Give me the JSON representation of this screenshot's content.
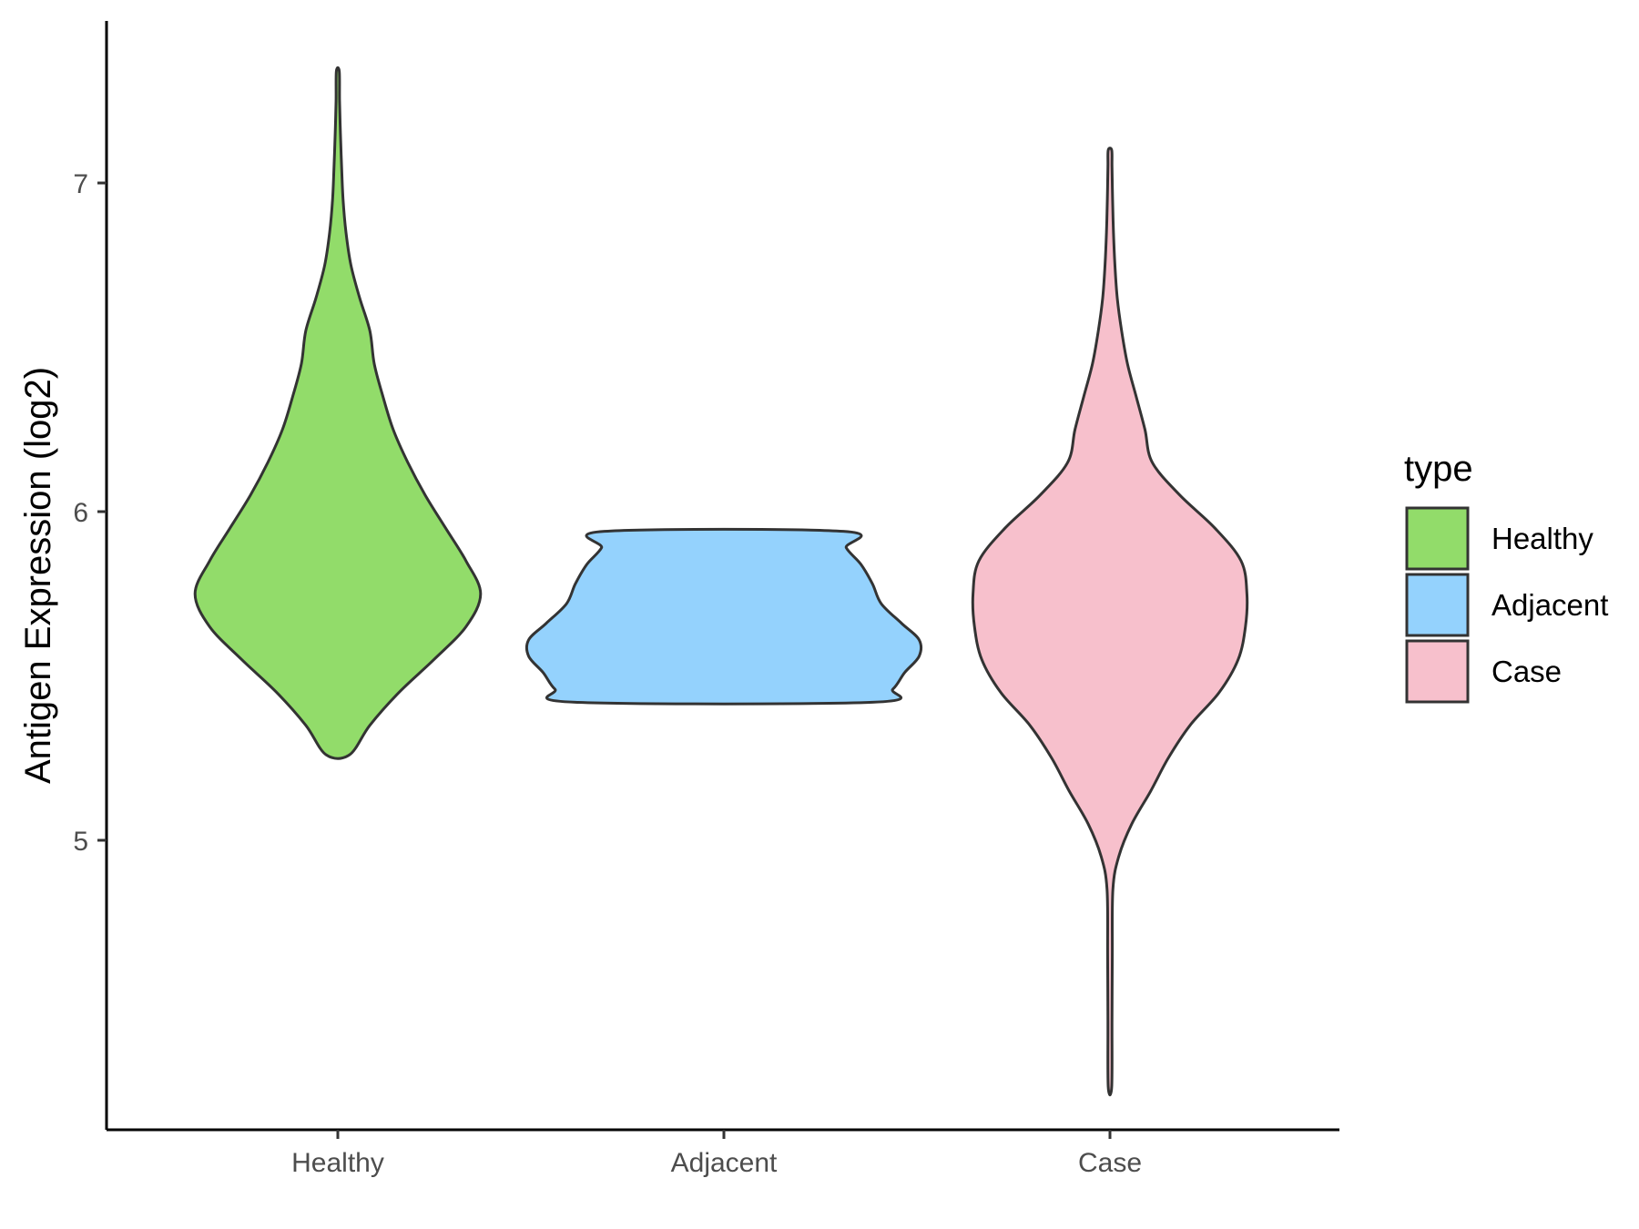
{
  "chart_data": {
    "type": "violin",
    "title": "",
    "xlabel": "",
    "ylabel": "Antigen Expression (log2)",
    "ylim": [
      4.1,
      7.5
    ],
    "yticks": [
      5,
      6,
      7
    ],
    "grid": false,
    "categories": [
      "Healthy",
      "Adjacent",
      "Case"
    ],
    "legend": {
      "title": "type",
      "placement": "right",
      "entries": [
        "Healthy",
        "Adjacent",
        "Case"
      ]
    },
    "colors": {
      "Healthy": "#92dc6a",
      "Adjacent": "#94d2fd",
      "Case": "#f7c0cc",
      "outline": "#333333"
    },
    "series": [
      {
        "name": "Healthy",
        "min": 5.26,
        "max": 7.34,
        "profile": [
          [
            5.26,
            0.04
          ],
          [
            5.35,
            0.11
          ],
          [
            5.45,
            0.21
          ],
          [
            5.55,
            0.33
          ],
          [
            5.65,
            0.44
          ],
          [
            5.75,
            0.49
          ],
          [
            5.85,
            0.44
          ],
          [
            5.95,
            0.37
          ],
          [
            6.05,
            0.3
          ],
          [
            6.15,
            0.24
          ],
          [
            6.25,
            0.19
          ],
          [
            6.35,
            0.155
          ],
          [
            6.45,
            0.125
          ],
          [
            6.55,
            0.11
          ],
          [
            6.65,
            0.075
          ],
          [
            6.75,
            0.045
          ],
          [
            6.85,
            0.028
          ],
          [
            6.95,
            0.018
          ],
          [
            7.05,
            0.013
          ],
          [
            7.15,
            0.009
          ],
          [
            7.25,
            0.006
          ],
          [
            7.34,
            0.005
          ]
        ]
      },
      {
        "name": "Adjacent",
        "min": 5.42,
        "max": 5.94,
        "profile": [
          [
            5.42,
            0.51
          ],
          [
            5.46,
            0.58
          ],
          [
            5.51,
            0.62
          ],
          [
            5.56,
            0.67
          ],
          [
            5.61,
            0.67
          ],
          [
            5.66,
            0.61
          ],
          [
            5.72,
            0.54
          ],
          [
            5.78,
            0.51
          ],
          [
            5.84,
            0.47
          ],
          [
            5.89,
            0.42
          ],
          [
            5.94,
            0.41
          ]
        ]
      },
      {
        "name": "Case",
        "min": 4.25,
        "max": 7.1,
        "profile": [
          [
            4.25,
            0.006
          ],
          [
            4.45,
            0.007
          ],
          [
            4.65,
            0.008
          ],
          [
            4.85,
            0.01
          ],
          [
            4.95,
            0.03
          ],
          [
            5.05,
            0.075
          ],
          [
            5.15,
            0.14
          ],
          [
            5.25,
            0.2
          ],
          [
            5.35,
            0.275
          ],
          [
            5.45,
            0.375
          ],
          [
            5.55,
            0.44
          ],
          [
            5.65,
            0.465
          ],
          [
            5.75,
            0.47
          ],
          [
            5.85,
            0.45
          ],
          [
            5.95,
            0.36
          ],
          [
            6.05,
            0.24
          ],
          [
            6.15,
            0.145
          ],
          [
            6.25,
            0.12
          ],
          [
            6.35,
            0.09
          ],
          [
            6.45,
            0.06
          ],
          [
            6.55,
            0.04
          ],
          [
            6.65,
            0.025
          ],
          [
            6.75,
            0.017
          ],
          [
            6.85,
            0.012
          ],
          [
            6.95,
            0.009
          ],
          [
            7.05,
            0.007
          ],
          [
            7.1,
            0.006
          ]
        ]
      }
    ]
  }
}
